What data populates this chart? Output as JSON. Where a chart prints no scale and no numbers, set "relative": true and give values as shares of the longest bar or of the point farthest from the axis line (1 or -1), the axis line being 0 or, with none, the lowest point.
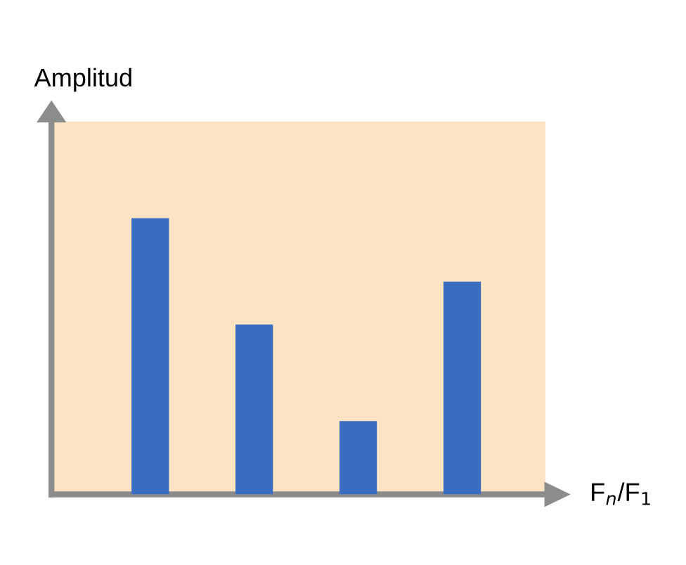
{
  "chart_data": {
    "type": "bar",
    "relative": true,
    "xlabel": "F$_{n}$/F$_{1}$",
    "ylabel": "Amplitud",
    "categories": [
      null,
      null,
      null,
      null
    ],
    "values": [
      1,
      0.615,
      0.265,
      0.77
    ],
    "color": "#3a6cc0",
    "grid": false,
    "legend": false
  }
}
